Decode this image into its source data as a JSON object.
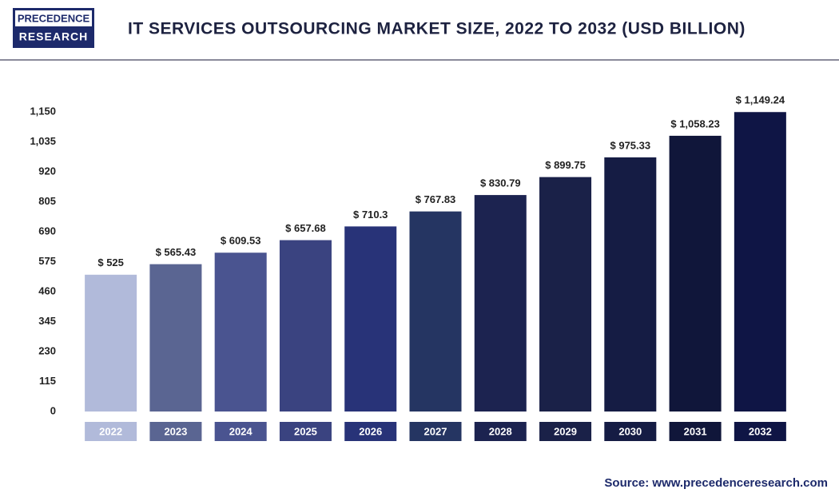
{
  "logo": {
    "line1": "PRECEDENCE",
    "line2": "RESEARCH"
  },
  "source": "Source: www.precedenceresearch.com",
  "chart_data": {
    "type": "bar",
    "title": "IT SERVICES OUTSOURCING MARKET  SIZE, 2022 TO 2032 (USD BILLION)",
    "categories": [
      "2022",
      "2023",
      "2024",
      "2025",
      "2026",
      "2027",
      "2028",
      "2029",
      "2030",
      "2031",
      "2032"
    ],
    "values": [
      525,
      565.43,
      609.53,
      657.68,
      710.3,
      767.83,
      830.79,
      899.75,
      975.33,
      1058.23,
      1149.24
    ],
    "value_labels": [
      "$ 525",
      "$ 565.43",
      "$ 609.53",
      "$ 657.68",
      "$ 710.3",
      "$ 767.83",
      "$ 830.79",
      "$ 899.75",
      "$ 975.33",
      "$ 1,058.23",
      "$ 1,149.24"
    ],
    "colors": [
      "#b1bada",
      "#5a6592",
      "#4a5490",
      "#3a4380",
      "#283378",
      "#253562",
      "#1c2350",
      "#1a2148",
      "#151c44",
      "#10163a",
      "#0f1545"
    ],
    "ylim": [
      0,
      1150
    ],
    "yticks": [
      0,
      115,
      230,
      345,
      460,
      575,
      690,
      805,
      920,
      {
        "value": 1035,
        "label": "1,035"
      },
      {
        "value": 1150,
        "label": "1,150"
      }
    ],
    "grid": false
  }
}
